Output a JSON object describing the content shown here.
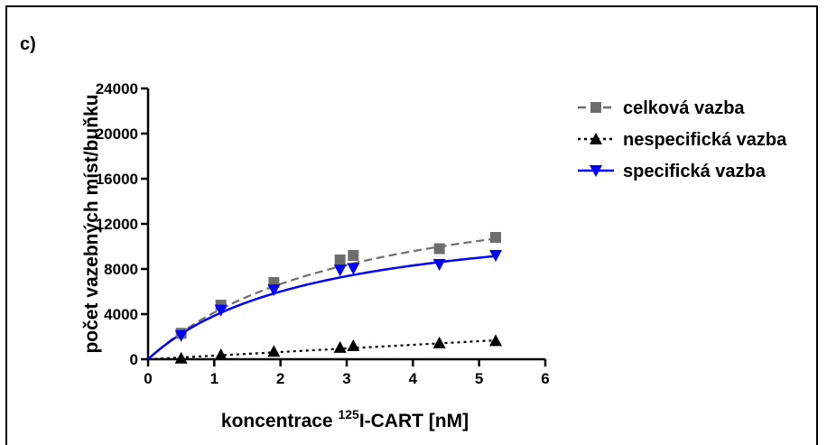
{
  "panel_label": "c)",
  "chart_data": {
    "type": "scatter",
    "title": "",
    "xlabel_prefix": "koncentrace ",
    "xlabel_superscript": "125",
    "xlabel_suffix": "I-CART [nM]",
    "ylabel": "počet vazebných míst/buňku",
    "xlim": [
      0,
      6
    ],
    "ylim": [
      0,
      24000
    ],
    "x_ticks": [
      "0",
      "1",
      "2",
      "3",
      "4",
      "5",
      "6"
    ],
    "y_ticks": [
      "0",
      "4000",
      "8000",
      "12000",
      "16000",
      "20000",
      "24000"
    ],
    "legend_position": "top-right",
    "series": [
      {
        "name": "celková vazba",
        "marker": "square",
        "line": "dashed",
        "color": "#6d6d6d",
        "points": [
          [
            0.5,
            2300
          ],
          [
            1.1,
            4800
          ],
          [
            1.9,
            6800
          ],
          [
            2.9,
            8800
          ],
          [
            3.1,
            9200
          ],
          [
            4.4,
            9800
          ],
          [
            5.25,
            10800
          ]
        ],
        "fit": {
          "bmax": 17000,
          "kd": 3.1
        }
      },
      {
        "name": "nespecifická vazba",
        "marker": "triangle-up",
        "line": "dotted",
        "color": "#000000",
        "points": [
          [
            0.5,
            100
          ],
          [
            1.1,
            400
          ],
          [
            1.9,
            700
          ],
          [
            2.9,
            1050
          ],
          [
            3.1,
            1200
          ],
          [
            4.4,
            1450
          ],
          [
            5.25,
            1650
          ]
        ],
        "fit": {
          "slope": 320
        }
      },
      {
        "name": "specifická vazba",
        "marker": "triangle-down",
        "line": "solid",
        "color": "#0000ff",
        "points": [
          [
            0.5,
            2100
          ],
          [
            1.1,
            4350
          ],
          [
            1.9,
            6150
          ],
          [
            2.9,
            7900
          ],
          [
            3.1,
            8050
          ],
          [
            4.4,
            8400
          ],
          [
            5.25,
            9200
          ]
        ],
        "fit": {
          "bmax": 13500,
          "kd": 2.5
        }
      }
    ]
  }
}
